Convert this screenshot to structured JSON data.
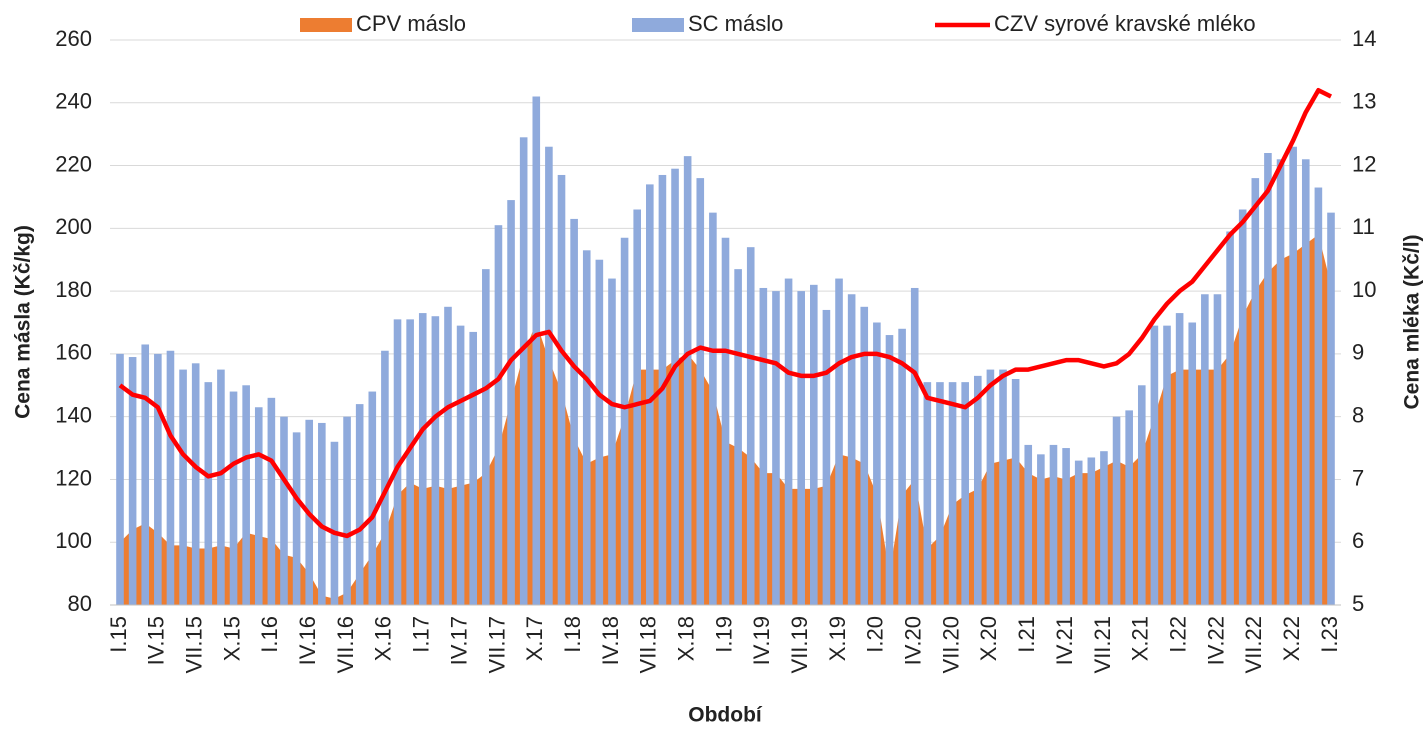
{
  "chart_data": {
    "type": "combo",
    "x_label": "Období",
    "y_label": "Cena másla (Kč/kg)",
    "y2_label": "Cena mléka (Kč/l)",
    "legend": "top",
    "grid": true,
    "categories": [
      "I.15",
      null,
      null,
      "IV.15",
      null,
      null,
      "VII.15",
      null,
      null,
      "X.15",
      null,
      null,
      "I.16",
      null,
      null,
      "IV.16",
      null,
      null,
      "VII.16",
      null,
      null,
      "X.16",
      null,
      null,
      "I.17",
      null,
      null,
      "IV.17",
      null,
      null,
      "VII.17",
      null,
      null,
      "X.17",
      null,
      null,
      "I.18",
      null,
      null,
      "IV.18",
      null,
      null,
      "VII.18",
      null,
      null,
      "X.18",
      null,
      null,
      "I.19",
      null,
      null,
      "IV.19",
      null,
      null,
      "VII.19",
      null,
      null,
      "X.19",
      null,
      null,
      "I.20",
      null,
      null,
      "IV.20",
      null,
      null,
      "VII.20",
      null,
      null,
      "X.20",
      null,
      null,
      "I.21",
      null,
      null,
      "IV.21",
      null,
      null,
      "VII.21",
      null,
      null,
      "X.21",
      null,
      null,
      "I.22",
      null,
      null,
      "IV.22",
      null,
      null,
      "VII.22",
      null,
      null,
      "X.22",
      null,
      null,
      "I.23"
    ],
    "ylim": [
      80,
      260
    ],
    "yticks": [
      80,
      100,
      120,
      140,
      160,
      180,
      200,
      220,
      240,
      260
    ],
    "y2lim": [
      5,
      14
    ],
    "y2ticks": [
      5,
      6,
      7,
      8,
      9,
      10,
      11,
      12,
      13,
      14
    ],
    "series": [
      {
        "name": "CPV máslo",
        "kind": "area",
        "color": "#ed7d31",
        "values": [
          100,
          104,
          106,
          103,
          99,
          99,
          98,
          98,
          99,
          98,
          103,
          102,
          101,
          96,
          95,
          90,
          83,
          82,
          84,
          90,
          96,
          103,
          115,
          119,
          117,
          118,
          117,
          118,
          119,
          122,
          130,
          145,
          160,
          170,
          158,
          148,
          133,
          125,
          127,
          128,
          140,
          155,
          155,
          155,
          158,
          160,
          155,
          148,
          132,
          130,
          127,
          122,
          122,
          117,
          117,
          117,
          118,
          128,
          127,
          125,
          115,
          90,
          115,
          120,
          98,
          102,
          112,
          115,
          117,
          125,
          126,
          127,
          122,
          120,
          121,
          120,
          122,
          122,
          124,
          126,
          124,
          128,
          140,
          153,
          155,
          155,
          155,
          155,
          160,
          172,
          180,
          186,
          190,
          192,
          195,
          198,
          182
        ]
      },
      {
        "name": "SC máslo",
        "kind": "bar",
        "color": "#8faadc",
        "values": [
          160,
          159,
          163,
          160,
          161,
          155,
          157,
          151,
          155,
          148,
          150,
          143,
          146,
          140,
          135,
          139,
          138,
          132,
          140,
          144,
          148,
          161,
          171,
          171,
          173,
          172,
          175,
          169,
          167,
          187,
          201,
          209,
          229,
          242,
          226,
          217,
          203,
          193,
          190,
          184,
          197,
          206,
          214,
          217,
          219,
          223,
          216,
          205,
          197,
          187,
          194,
          181,
          180,
          184,
          180,
          182,
          174,
          184,
          179,
          175,
          170,
          166,
          168,
          181,
          151,
          151,
          151,
          151,
          153,
          155,
          155,
          152,
          131,
          128,
          131,
          130,
          126,
          127,
          129,
          140,
          142,
          150,
          169,
          169,
          173,
          170,
          179,
          179,
          199,
          206,
          216,
          224,
          222,
          226,
          222,
          213,
          205
        ]
      },
      {
        "name": "CZV syrové kravské mléko",
        "kind": "line",
        "axis": "y2",
        "color": "#ff0000",
        "values": [
          8.5,
          8.35,
          8.3,
          8.15,
          7.7,
          7.4,
          7.2,
          7.05,
          7.1,
          7.25,
          7.35,
          7.4,
          7.3,
          7.0,
          6.7,
          6.45,
          6.25,
          6.15,
          6.1,
          6.2,
          6.4,
          6.8,
          7.2,
          7.5,
          7.8,
          8.0,
          8.15,
          8.25,
          8.35,
          8.45,
          8.6,
          8.9,
          9.1,
          9.3,
          9.35,
          9.05,
          8.8,
          8.6,
          8.35,
          8.2,
          8.15,
          8.2,
          8.25,
          8.45,
          8.8,
          9.0,
          9.1,
          9.05,
          9.05,
          9.0,
          8.95,
          8.9,
          8.85,
          8.7,
          8.65,
          8.65,
          8.7,
          8.85,
          8.95,
          9.0,
          9.0,
          8.95,
          8.85,
          8.7,
          8.3,
          8.25,
          8.2,
          8.15,
          8.3,
          8.5,
          8.65,
          8.75,
          8.75,
          8.8,
          8.85,
          8.9,
          8.9,
          8.85,
          8.8,
          8.85,
          9.0,
          9.25,
          9.55,
          9.8,
          10.0,
          10.15,
          10.4,
          10.65,
          10.9,
          11.1,
          11.35,
          11.6,
          12.0,
          12.4,
          12.85,
          13.2,
          13.1
        ]
      }
    ]
  }
}
